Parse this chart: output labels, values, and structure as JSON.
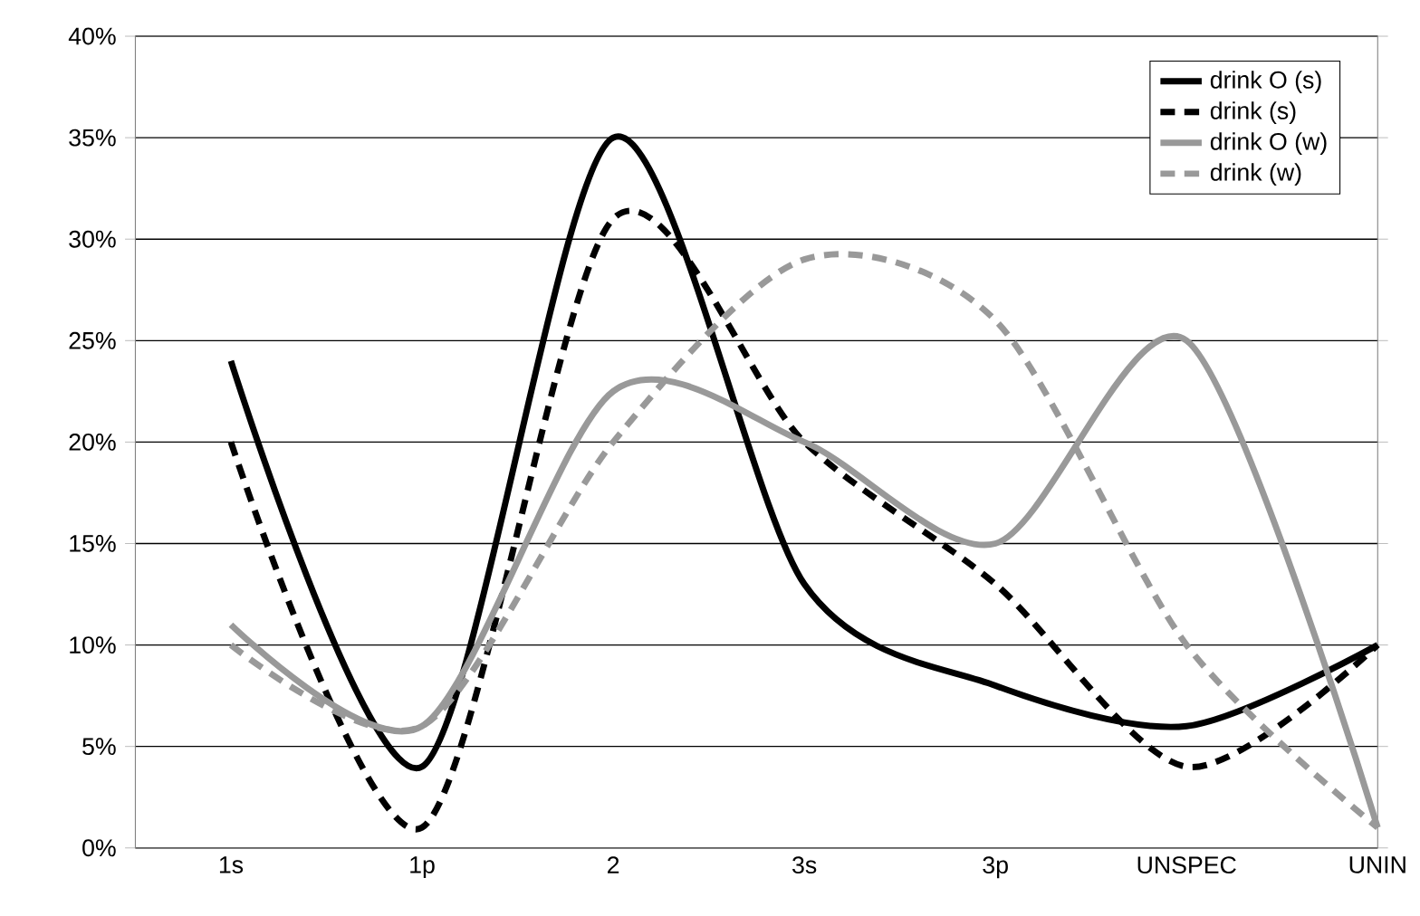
{
  "chart_data": {
    "type": "line",
    "categories": [
      "1s",
      "1p",
      "2",
      "3s",
      "3p",
      "UNSPEC",
      "UNIN"
    ],
    "series": [
      {
        "name": "drink O (s)",
        "color": "#000000",
        "line_style": "solid",
        "values": [
          24,
          4,
          35,
          13,
          8,
          6,
          10
        ]
      },
      {
        "name": "drink (s)",
        "color": "#000000",
        "line_style": "dashed",
        "values": [
          20,
          1,
          31,
          20,
          13,
          4,
          10
        ]
      },
      {
        "name": "drink O (w)",
        "color": "#999999",
        "line_style": "solid",
        "values": [
          11,
          6,
          22.5,
          20,
          15,
          25,
          1
        ]
      },
      {
        "name": "drink (w)",
        "color": "#999999",
        "line_style": "dashed",
        "values": [
          10,
          6,
          20,
          29,
          26,
          10,
          1
        ]
      }
    ],
    "ylim": [
      0,
      40
    ],
    "yticks": [
      {
        "value": 0,
        "label": "0%"
      },
      {
        "value": 5,
        "label": "5%"
      },
      {
        "value": 10,
        "label": "10%"
      },
      {
        "value": 15,
        "label": "15%"
      },
      {
        "value": 20,
        "label": "20%"
      },
      {
        "value": 25,
        "label": "25%"
      },
      {
        "value": 30,
        "label": "30%"
      },
      {
        "value": 35,
        "label": "35%"
      },
      {
        "value": 40,
        "label": "40%"
      }
    ],
    "grid": "y",
    "legend": "top right",
    "marker": "none"
  }
}
